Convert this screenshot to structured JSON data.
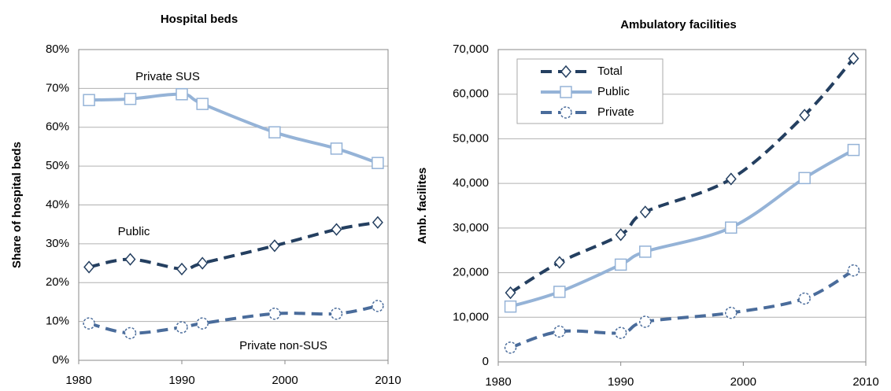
{
  "chart_data": [
    {
      "type": "line",
      "title": "Hospital beds",
      "y_label": "Share of hospital beds",
      "x": [
        1981,
        1985,
        1990,
        1992,
        1999,
        2005,
        2009
      ],
      "xlim": [
        1980,
        2010
      ],
      "xticks": [
        1980,
        1990,
        2000,
        2010
      ],
      "ylim": [
        0,
        80
      ],
      "yticks": [
        {
          "value": 0,
          "label": "0%"
        },
        {
          "value": 10,
          "label": "10%"
        },
        {
          "value": 20,
          "label": "20%"
        },
        {
          "value": 30,
          "label": "30%"
        },
        {
          "value": 40,
          "label": "40%"
        },
        {
          "value": 50,
          "label": "50%"
        },
        {
          "value": 60,
          "label": "60%"
        },
        {
          "value": 70,
          "label": "70%"
        },
        {
          "value": 80,
          "label": "80%"
        }
      ],
      "grid": true,
      "legend": "inline",
      "series": [
        {
          "name": "Private SUS",
          "color": "#95b3d7",
          "dashed": false,
          "marker": "square",
          "values": [
            67,
            67.3,
            68.5,
            66,
            58.7,
            54.5,
            50.8
          ]
        },
        {
          "name": "Public",
          "color": "#243f60",
          "dashed": true,
          "marker": "diamond",
          "values": [
            24,
            26,
            23.5,
            25,
            29.5,
            33.7,
            35.5
          ]
        },
        {
          "name": "Private non-SUS",
          "color": "#4a6c9b",
          "dashed": true,
          "marker": "circle",
          "values": [
            9.5,
            7,
            8.5,
            9.5,
            12,
            12,
            14
          ]
        }
      ]
    },
    {
      "type": "line",
      "title": "Ambulatory facilities",
      "y_label": "Amb. facilites",
      "x": [
        1981,
        1985,
        1990,
        1992,
        1999,
        2005,
        2009
      ],
      "xlim": [
        1980,
        2010
      ],
      "xticks": [
        1980,
        1990,
        2000,
        2010
      ],
      "ylim": [
        0,
        70000
      ],
      "yticks": [
        0,
        {
          "value": 10000,
          "label": "10,000"
        },
        {
          "value": 20000,
          "label": "20,000"
        },
        {
          "value": 30000,
          "label": "30,000"
        },
        {
          "value": 40000,
          "label": "40,000"
        },
        {
          "value": 50000,
          "label": "50,000"
        },
        {
          "value": 60000,
          "label": "60,000"
        },
        {
          "value": 70000,
          "label": "70,000"
        }
      ],
      "grid": true,
      "legend": "upper left",
      "series": [
        {
          "name": "Total",
          "color": "#243f60",
          "dashed": true,
          "marker": "diamond",
          "values": [
            15500,
            22300,
            28500,
            33600,
            41000,
            55300,
            68000
          ]
        },
        {
          "name": "Public",
          "color": "#95b3d7",
          "dashed": false,
          "marker": "square",
          "values": [
            12400,
            15700,
            21800,
            24700,
            30100,
            41200,
            47500
          ]
        },
        {
          "name": "Private",
          "color": "#4a6c9b",
          "dashed": true,
          "marker": "circle",
          "values": [
            3200,
            6800,
            6500,
            9000,
            11000,
            14200,
            20500
          ]
        }
      ]
    }
  ]
}
